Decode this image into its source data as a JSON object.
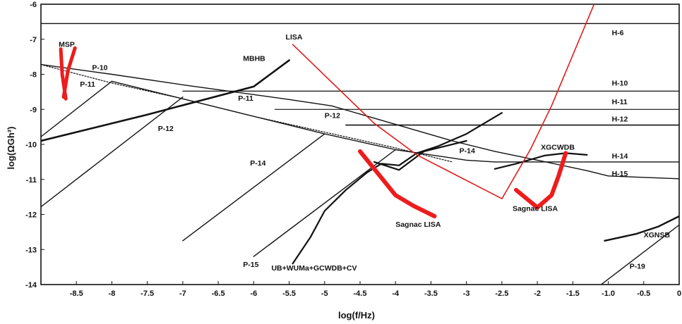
{
  "chart_data": {
    "type": "line",
    "title": "",
    "xlabel": "log(f/Hz)",
    "ylabel": "log(ΩGh²)",
    "xlim": [
      -9,
      0
    ],
    "ylim": [
      -14,
      -6
    ],
    "xticks": [
      -8.5,
      -8,
      -7.5,
      -7,
      -6.5,
      -6,
      -5.5,
      -5,
      -4.5,
      -4,
      -3.5,
      -3,
      -2.5,
      -2,
      -1.5,
      -1.0,
      -0.5,
      0
    ],
    "xtick_labels": [
      "-8.5",
      "-8",
      "-7.5",
      "-7",
      "-6.5",
      "-6",
      "-5.5",
      "-5",
      "-4.5",
      "-4",
      "-3.5",
      "-3",
      "-2.5",
      "-2",
      "-1.5",
      "-1.0",
      "-0.5",
      "0"
    ],
    "yticks": [
      -6,
      -7,
      -8,
      -9,
      -10,
      -11,
      -12,
      -13,
      -14
    ],
    "ytick_labels": [
      "-6",
      "-7",
      "-8",
      "-9",
      "-10",
      "-11",
      "-12",
      "-13",
      "-14"
    ],
    "grid": false,
    "curves": [
      {
        "color": "#111111",
        "width": 1.4,
        "x": [
          -9,
          0
        ],
        "y": [
          -6.55,
          -6.55
        ]
      },
      {
        "color": "#111111",
        "width": 1.4,
        "x": [
          -9,
          -8,
          -7,
          -5.5,
          -4.9,
          -4.0,
          -3.2,
          -2.6,
          -2.0,
          -1.3,
          -1.0,
          0
        ],
        "y": [
          -7.72,
          -8.0,
          -8.3,
          -8.72,
          -8.9,
          -9.43,
          -9.9,
          -10.2,
          -10.45,
          -10.75,
          -10.9,
          -10.98
        ]
      },
      {
        "color": "#111111",
        "width": 1.4,
        "x": [
          -8,
          -7,
          -5,
          -4.0,
          -3.5,
          -3,
          -2.6,
          -1.3
        ],
        "y": [
          -8.2,
          -8.7,
          -9.7,
          -10.15,
          -10.3,
          -10.45,
          -10.5,
          -10.5
        ]
      },
      {
        "color": "#111111",
        "width": 1.4,
        "x": [
          -9,
          -8
        ],
        "y": [
          -9.78,
          -8.2
        ]
      },
      {
        "color": "#111111",
        "width": 1.4,
        "x": [
          -9,
          -7
        ],
        "y": [
          -11.78,
          -8.65
        ]
      },
      {
        "color": "#111111",
        "width": 1.4,
        "x": [
          -7,
          -5
        ],
        "y": [
          -12.75,
          -9.7
        ]
      },
      {
        "color": "#111111",
        "width": 1.4,
        "x": [
          -6,
          -4.0
        ],
        "y": [
          -13.2,
          -10.15
        ]
      },
      {
        "color": "#111111",
        "width": 1.2,
        "x": [
          -7,
          0
        ],
        "y": [
          -8.48,
          -8.48
        ]
      },
      {
        "color": "#111111",
        "width": 1.2,
        "x": [
          -5.7,
          0
        ],
        "y": [
          -9.0,
          -9.0
        ]
      },
      {
        "color": "#111111",
        "width": 1.6,
        "x": [
          -4.7,
          0
        ],
        "y": [
          -9.45,
          -9.45
        ]
      },
      {
        "color": "#111111",
        "width": 1.4,
        "x": [
          -1.3,
          0
        ],
        "y": [
          -10.5,
          -10.5
        ]
      },
      {
        "color": "#111111",
        "width": 1.2,
        "dash": "2,2",
        "x": [
          -9,
          -8,
          -7,
          -6,
          -5,
          -4,
          -3.2
        ],
        "y": [
          -7.72,
          -8.25,
          -8.7,
          -9.2,
          -9.65,
          -10.1,
          -10.5
        ]
      },
      {
        "color": "#111111",
        "width": 2.6,
        "x": [
          -9,
          -7.5,
          -6,
          -5.5
        ],
        "y": [
          -9.9,
          -9.15,
          -8.35,
          -7.6
        ]
      },
      {
        "color": "#111111",
        "width": 2.2,
        "x": [
          -5.45,
          -5.2,
          -5.0,
          -4.7,
          -4.4,
          -4.2,
          -3.95,
          -3.7,
          -3.4,
          -3.0,
          -2.5
        ],
        "y": [
          -13.4,
          -12.65,
          -11.9,
          -11.3,
          -10.8,
          -10.55,
          -10.6,
          -10.25,
          -10.05,
          -9.7,
          -9.1
        ]
      },
      {
        "color": "#111111",
        "width": 2.2,
        "x": [
          -4.3,
          -3.95,
          -3.6,
          -3.0
        ],
        "y": [
          -10.5,
          -10.73,
          -10.2,
          -9.9
        ]
      },
      {
        "color": "#111111",
        "width": 2.2,
        "x": [
          -2.6,
          -2.3,
          -1.9,
          -1.6,
          -1.3
        ],
        "y": [
          -10.7,
          -10.55,
          -10.32,
          -10.25,
          -10.3
        ]
      },
      {
        "color": "#111111",
        "width": 2.4,
        "x": [
          -1.05,
          -0.6,
          -0.3,
          0
        ],
        "y": [
          -12.75,
          -12.55,
          -12.35,
          -12.05
        ]
      },
      {
        "color": "#111111",
        "width": 1.4,
        "x": [
          -1.1,
          0
        ],
        "y": [
          -14.0,
          -12.3
        ]
      },
      {
        "color": "#e11b1b",
        "width": 1.6,
        "x": [
          -5.45,
          -4.3,
          -3.7,
          -2.5,
          -2.1,
          -1.8,
          -1.2
        ],
        "y": [
          -7.15,
          -9.4,
          -10.3,
          -11.55,
          -10.15,
          -8.9,
          -6.0
        ]
      },
      {
        "color": "#ee1c1c",
        "width": 6,
        "x": [
          -4.5,
          -4.3,
          -4.0,
          -3.75,
          -3.45
        ],
        "y": [
          -10.2,
          -10.7,
          -11.45,
          -11.75,
          -12.05
        ]
      },
      {
        "color": "#ee1c1c",
        "width": 6,
        "x": [
          -2.3,
          -2.0,
          -1.8,
          -1.7,
          -1.6
        ],
        "y": [
          -11.3,
          -11.8,
          -11.45,
          -10.9,
          -10.25
        ]
      },
      {
        "color": "#ee1c1c",
        "width": 5,
        "x": [
          -8.72,
          -8.7,
          -8.65
        ],
        "y": [
          -7.28,
          -8.0,
          -8.7
        ]
      },
      {
        "color": "#ee1c1c",
        "width": 5,
        "x": [
          -8.68,
          -8.62,
          -8.52
        ],
        "y": [
          -8.65,
          -7.9,
          -7.25
        ]
      }
    ],
    "annotations": [
      {
        "text": "MSP",
        "x": -8.75,
        "y": -7.22
      },
      {
        "text": "P-10",
        "x": -8.28,
        "y": -7.88
      },
      {
        "text": "P-11",
        "x": -8.45,
        "y": -8.35
      },
      {
        "text": "MBHB",
        "x": -6.15,
        "y": -7.62
      },
      {
        "text": "LISA",
        "x": -5.55,
        "y": -7.0
      },
      {
        "text": "P-11",
        "x": -6.22,
        "y": -8.75
      },
      {
        "text": "P-12",
        "x": -7.35,
        "y": -9.62
      },
      {
        "text": "P-12",
        "x": -5.0,
        "y": -9.25
      },
      {
        "text": "P-14",
        "x": -6.05,
        "y": -10.6
      },
      {
        "text": "P-14",
        "x": -3.1,
        "y": -10.25
      },
      {
        "text": "P-15",
        "x": -6.15,
        "y": -13.5
      },
      {
        "text": "UB+WUMa+GCWDB+CV",
        "x": -5.75,
        "y": -13.6
      },
      {
        "text": "Sagnac LISA",
        "x": -4.0,
        "y": -12.35
      },
      {
        "text": "Sagnac LISA",
        "x": -2.35,
        "y": -11.9
      },
      {
        "text": "XGCWDB",
        "x": -1.95,
        "y": -10.15
      },
      {
        "text": "H-6",
        "x": -0.95,
        "y": -6.88
      },
      {
        "text": "H-10",
        "x": -0.95,
        "y": -8.32
      },
      {
        "text": "H-11",
        "x": -0.95,
        "y": -8.85
      },
      {
        "text": "H-12",
        "x": -0.95,
        "y": -9.35
      },
      {
        "text": "H-14",
        "x": -0.95,
        "y": -10.4
      },
      {
        "text": "H-15",
        "x": -0.95,
        "y": -10.9
      },
      {
        "text": "XGNSB",
        "x": -0.5,
        "y": -12.65
      },
      {
        "text": "P-19",
        "x": -0.7,
        "y": -13.55
      }
    ]
  }
}
